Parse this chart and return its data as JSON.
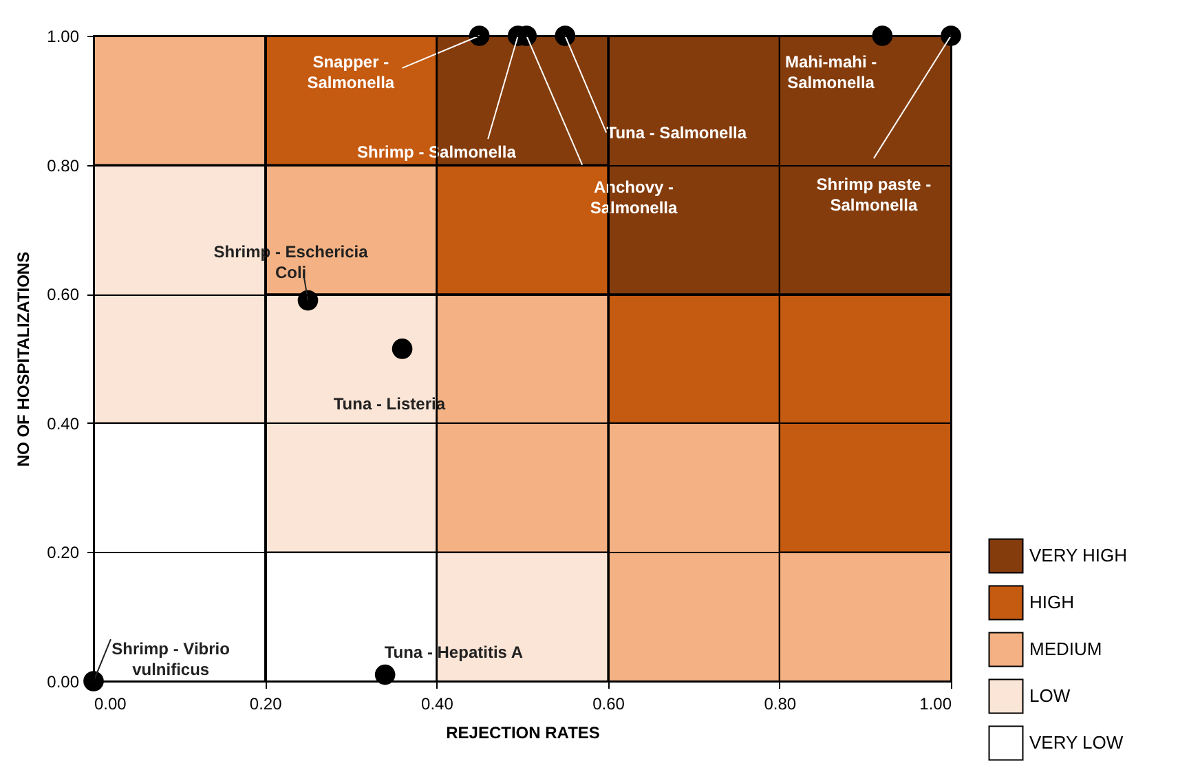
{
  "chart_data": {
    "type": "bar",
    "stacked": true,
    "xlabel": "REJECTION RATES",
    "ylabel": "NO OF HOSPITALIZATIONS",
    "xlim": [
      0,
      1
    ],
    "ylim": [
      0,
      1
    ],
    "xticks": [
      {
        "value": 0,
        "label": "0.00"
      },
      {
        "value": 0.2,
        "label": "0.20"
      },
      {
        "value": 0.4,
        "label": "0.40"
      },
      {
        "value": 0.6,
        "label": "0.60"
      },
      {
        "value": 0.8,
        "label": "0.80"
      },
      {
        "value": 1,
        "label": "1.00"
      }
    ],
    "yticks": [
      {
        "value": 0,
        "label": "0.00"
      },
      {
        "value": 0.2,
        "label": "0.20"
      },
      {
        "value": 0.4,
        "label": "0.40"
      },
      {
        "value": 0.6,
        "label": "0.60"
      },
      {
        "value": 0.8,
        "label": "0.80"
      },
      {
        "value": 1,
        "label": "1.00"
      }
    ],
    "grid": true,
    "legend": "bottom right",
    "marker": "circle",
    "x": [
      0.1,
      0.3,
      0.5,
      0.7,
      0.9
    ],
    "series": [
      {
        "name": "VERY LOW",
        "color": "#ffffff",
        "values": [
          0.4,
          0.2,
          null,
          null,
          null
        ]
      },
      {
        "name": "LOW",
        "color": "#fbe5d6",
        "values": [
          0.4,
          0.4,
          0.2,
          null,
          null
        ]
      },
      {
        "name": "MEDIUM",
        "color": "#f4b183",
        "values": [
          0.2,
          0.2,
          0.4,
          0.4,
          0.2
        ]
      },
      {
        "name": "HIGH",
        "color": "#c55a11",
        "values": [
          null,
          0.2,
          0.2,
          0.2,
          0.4
        ]
      },
      {
        "name": "VERY HIGH",
        "color": "#843c0c",
        "values": [
          null,
          null,
          0.2,
          0.4,
          0.4
        ]
      },
      {
        "type": "scatter",
        "color": "#000000",
        "x": [
          0.45,
          0.495,
          0.505,
          0.55,
          0.92,
          1.0,
          0.25,
          0.36,
          0.0,
          0.34
        ],
        "values": [
          1.0,
          1.0,
          1.0,
          1.0,
          1.0,
          1.0,
          0.59,
          0.515,
          0.0,
          0.01
        ]
      }
    ],
    "annotations": [
      {
        "text": "Snapper -\nSalmonella",
        "x": 0.45,
        "y": 1.0
      },
      {
        "text": "Shrimp - Salmonella",
        "x": 0.495,
        "y": 1.0
      },
      {
        "text": "Anchovy -\nSalmonella",
        "x": 0.505,
        "y": 1.0
      },
      {
        "text": "Tuna - Salmonella",
        "x": 0.55,
        "y": 1.0
      },
      {
        "text": "Mahi-mahi -\nSalmonella",
        "x": 0.92,
        "y": 1.0
      },
      {
        "text": "Shrimp paste -\nSalmonella",
        "x": 1.0,
        "y": 1.0
      },
      {
        "text": "Shrimp - Eschericia\nColi",
        "x": 0.25,
        "y": 0.59
      },
      {
        "text": "Tuna - Listeria",
        "x": 0.36,
        "y": 0.515
      },
      {
        "text": "Shrimp - Vibrio\nvulnificus",
        "x": 0.0,
        "y": 0.0
      },
      {
        "text": "Tuna - Hepatitis A",
        "x": 0.34,
        "y": 0.01
      }
    ]
  }
}
